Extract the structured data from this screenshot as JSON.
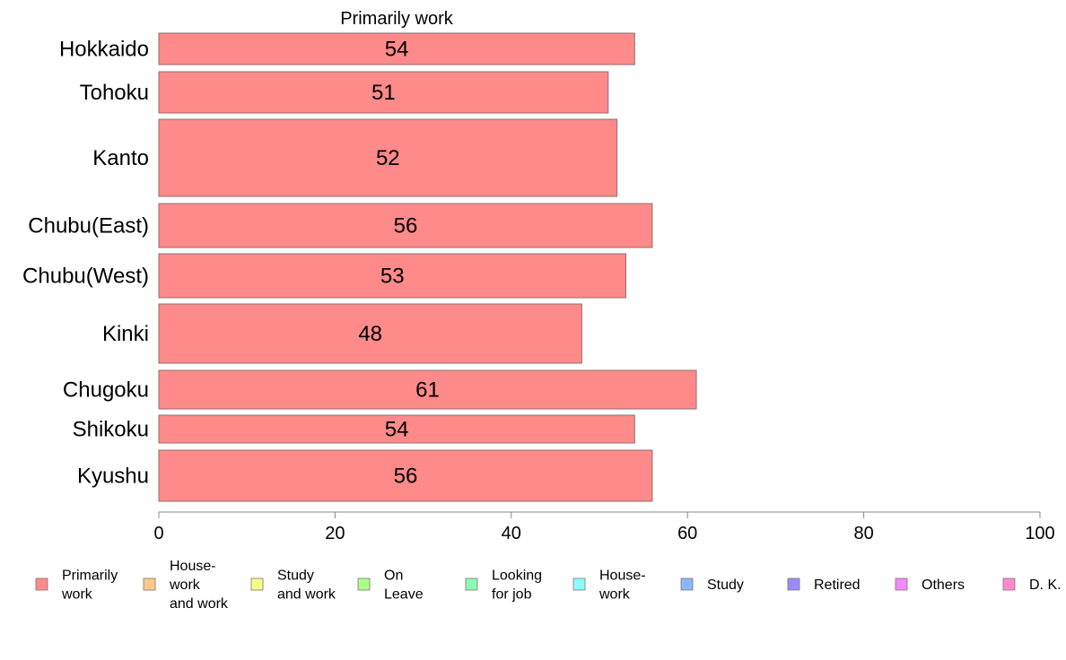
{
  "chart_data": {
    "type": "bar",
    "orientation": "horizontal",
    "title": "Primarily work",
    "categories": [
      "Hokkaido",
      "Tohoku",
      "Kanto",
      "Chubu(East)",
      "Chubu(West)",
      "Kinki",
      "Chugoku",
      "Shikoku",
      "Kyushu"
    ],
    "series": [
      {
        "name": "Primarily work",
        "values": [
          54,
          51,
          52,
          56,
          53,
          48,
          61,
          54,
          56
        ],
        "color": "#ff8a8a"
      }
    ],
    "xlim": [
      0,
      100
    ],
    "xticks": [
      "0",
      "20",
      "40",
      "60",
      "80",
      "100"
    ],
    "grid": false,
    "legend_position": "bottom",
    "legend": [
      {
        "label": "Primarily\nwork",
        "color": "#ff8a8a"
      },
      {
        "label": "House-\nwork\nand work",
        "color": "#ffc98a"
      },
      {
        "label": "Study\nand work",
        "color": "#f3ff8a"
      },
      {
        "label": "On\nLeave",
        "color": "#a8ff8a"
      },
      {
        "label": "Looking\nfor job",
        "color": "#8affb4"
      },
      {
        "label": "House-\nwork",
        "color": "#8affff"
      },
      {
        "label": "Study",
        "color": "#8ab8ff"
      },
      {
        "label": "Retired",
        "color": "#9a8aff"
      },
      {
        "label": "Others",
        "color": "#ef8aff"
      },
      {
        "label": "D. K.",
        "color": "#ff8ad0"
      }
    ]
  }
}
